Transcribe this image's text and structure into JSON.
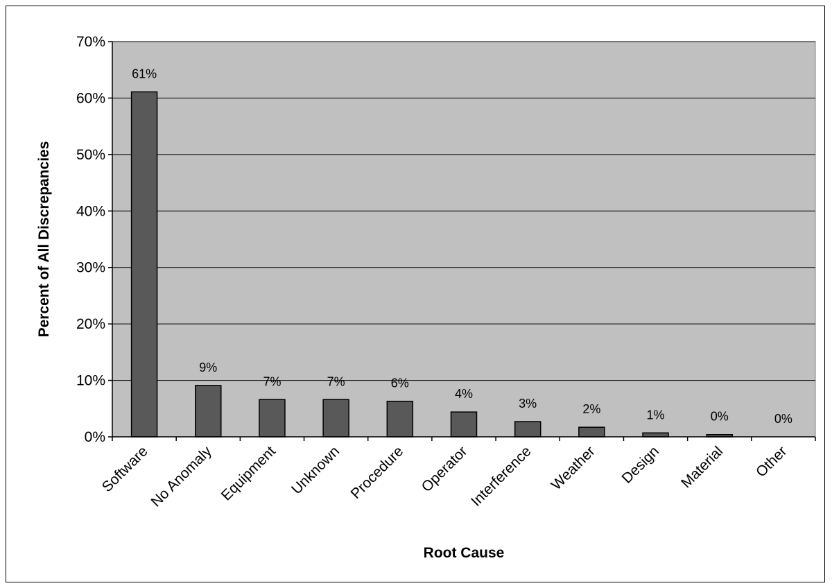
{
  "chart_data": {
    "type": "bar",
    "title": "",
    "xlabel": "Root Cause",
    "ylabel": "Percent of All Discrepancies",
    "categories": [
      "Software",
      "No Anomaly",
      "Equipment",
      "Unknown",
      "Procedure",
      "Operator",
      "Interference",
      "Weather",
      "Design",
      "Material",
      "Other"
    ],
    "values": [
      61.1,
      9.1,
      6.6,
      6.6,
      6.3,
      4.4,
      2.7,
      1.7,
      0.7,
      0.4,
      0.0
    ],
    "data_labels": [
      "61%",
      "9%",
      "7%",
      "7%",
      "6%",
      "4%",
      "3%",
      "2%",
      "1%",
      "0%",
      "0%"
    ],
    "ylim": [
      0,
      70
    ],
    "yticks": [
      0,
      10,
      20,
      30,
      40,
      50,
      60,
      70
    ],
    "ytick_labels": [
      "0%",
      "10%",
      "20%",
      "30%",
      "40%",
      "50%",
      "60%",
      "70%"
    ],
    "grid": true,
    "legend": "none",
    "colors": {
      "plot_background": "#c0c0c0",
      "bar_fill": "#595959",
      "bar_stroke": "#000000",
      "gridline": "#000000"
    }
  }
}
